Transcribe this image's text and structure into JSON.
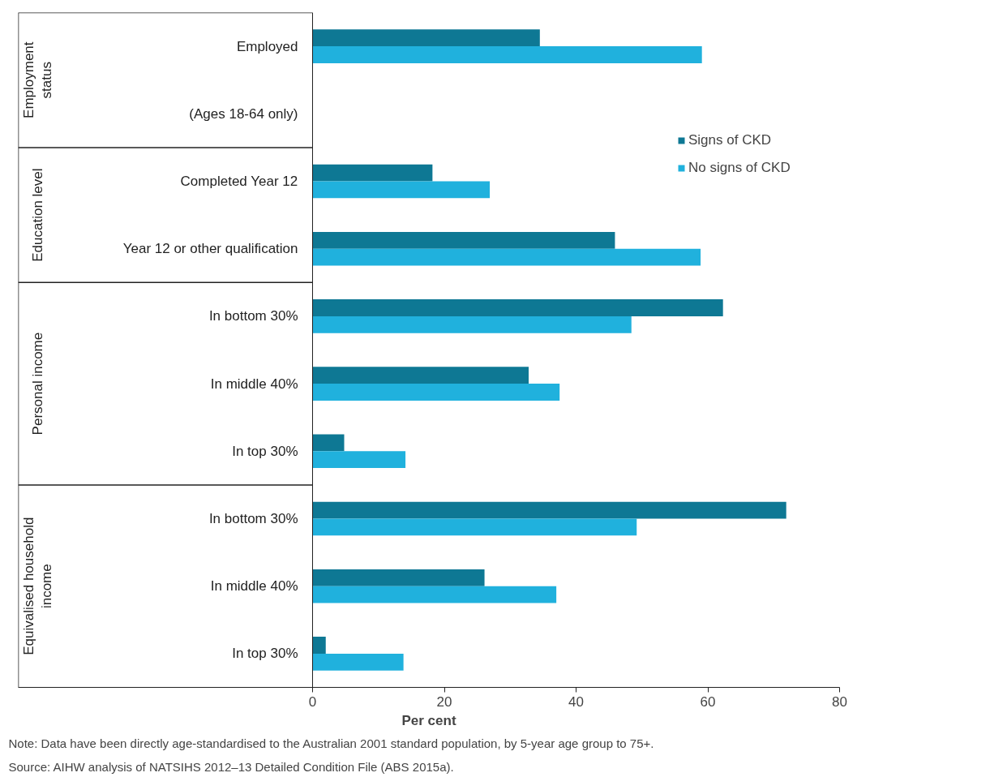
{
  "chart_data": {
    "type": "bar",
    "orientation": "horizontal",
    "xlabel": "Per cent",
    "categories": [
      "Employed",
      "(Ages 18-64 only)",
      "Completed Year 12",
      "Year 12 or other qualification",
      "In bottom 30%",
      "In middle 40%",
      "In top 30%",
      "In bottom 30%",
      "In middle 40%",
      "In top 30%"
    ],
    "series": [
      {
        "name": "Signs of CKD",
        "color": "#0e7894",
        "values": [
          34.5,
          null,
          18.2,
          45.9,
          62.3,
          32.8,
          4.8,
          71.9,
          26.1,
          2.0
        ]
      },
      {
        "name": "No signs of CKD",
        "color": "#20b1dd",
        "values": [
          59.1,
          null,
          26.9,
          58.9,
          48.4,
          37.5,
          14.1,
          49.2,
          37.0,
          13.8
        ]
      }
    ],
    "xlim": [
      0,
      80
    ],
    "xticks": [
      0,
      20,
      40,
      60,
      80
    ],
    "grid": false,
    "legend": "top right",
    "annotations": [
      "Employment status",
      "Education level",
      "Personal income",
      "Equivalised household income",
      "Note: Data have been directly age-standardised to the Australian 2001 standard population, by 5-year age group to 75+.",
      "Source: AIHW analysis of NATSIHS 2012–13 Detailed Condition File (ABS 2015a)."
    ]
  }
}
